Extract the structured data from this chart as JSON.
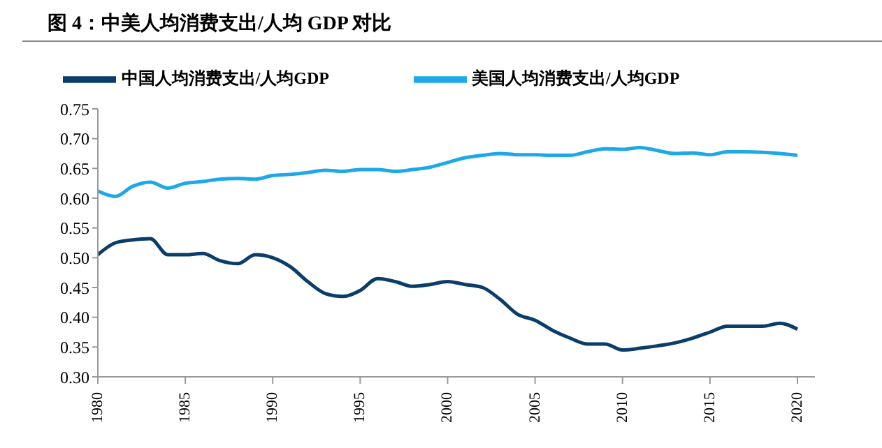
{
  "chart_data": {
    "type": "line",
    "title": "图 4：中美人均消费支出/人均 GDP 对比",
    "x": [
      1980,
      1981,
      1982,
      1983,
      1984,
      1985,
      1986,
      1987,
      1988,
      1989,
      1990,
      1991,
      1992,
      1993,
      1994,
      1995,
      1996,
      1997,
      1998,
      1999,
      2000,
      2001,
      2002,
      2003,
      2004,
      2005,
      2006,
      2007,
      2008,
      2009,
      2010,
      2011,
      2012,
      2013,
      2014,
      2015,
      2016,
      2017,
      2018,
      2019,
      2020
    ],
    "series": [
      {
        "name": "中国人均消费支出/人均GDP",
        "color": "#0b3d6b",
        "values": [
          0.505,
          0.525,
          0.53,
          0.532,
          0.505,
          0.505,
          0.507,
          0.495,
          0.49,
          0.505,
          0.5,
          0.485,
          0.46,
          0.44,
          0.435,
          0.445,
          0.465,
          0.46,
          0.452,
          0.455,
          0.46,
          0.455,
          0.45,
          0.43,
          0.405,
          0.395,
          0.378,
          0.365,
          0.355,
          0.355,
          0.345,
          0.348,
          0.352,
          0.357,
          0.365,
          0.375,
          0.385,
          0.385,
          0.385,
          0.39,
          0.38
        ]
      },
      {
        "name": "美国人均消费支出/人均GDP",
        "color": "#1fa8e8",
        "values": [
          0.612,
          0.603,
          0.62,
          0.627,
          0.617,
          0.625,
          0.628,
          0.632,
          0.633,
          0.632,
          0.638,
          0.64,
          0.643,
          0.647,
          0.645,
          0.648,
          0.648,
          0.645,
          0.648,
          0.652,
          0.66,
          0.668,
          0.672,
          0.675,
          0.673,
          0.673,
          0.672,
          0.672,
          0.678,
          0.683,
          0.682,
          0.685,
          0.68,
          0.675,
          0.676,
          0.673,
          0.678,
          0.678,
          0.677,
          0.675,
          0.672
        ]
      }
    ],
    "xlim": [
      1980,
      2021
    ],
    "xticks": [
      1980,
      1985,
      1990,
      1995,
      2000,
      2005,
      2010,
      2015,
      2020
    ],
    "ylim": [
      0.3,
      0.75
    ],
    "yticks": [
      {
        "value": 0.3,
        "label": "0.30"
      },
      {
        "value": 0.35,
        "label": "0.35"
      },
      {
        "value": 0.4,
        "label": "0.40"
      },
      {
        "value": 0.45,
        "label": "0.45"
      },
      {
        "value": 0.5,
        "label": "0.50"
      },
      {
        "value": 0.55,
        "label": "0.55"
      },
      {
        "value": 0.6,
        "label": "0.60"
      },
      {
        "value": 0.65,
        "label": "0.65"
      },
      {
        "value": 0.7,
        "label": "0.70"
      },
      {
        "value": 0.75,
        "label": "0.75"
      }
    ],
    "grid": false,
    "legend": "top",
    "marker": "none",
    "line_style": "solid"
  }
}
